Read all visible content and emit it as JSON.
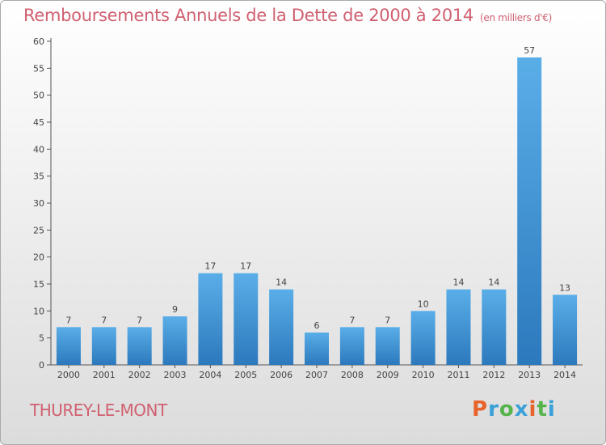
{
  "title": "Remboursements Annuels de la Dette de 2000 à 2014",
  "subtitle": "(en milliers d'€)",
  "commune": "THUREY-LE-MONT",
  "logo": {
    "text": "Proxiti",
    "colors": [
      "#e8632b",
      "#3aa0d8",
      "#55b44a",
      "#3aa0d8",
      "#e8632b",
      "#55b44a",
      "#3aa0d8"
    ]
  },
  "colors": {
    "bar_light": "#5aaee8",
    "bar_dark": "#2c79bd",
    "title": "#d06070"
  },
  "chart_data": {
    "type": "bar",
    "categories": [
      "2000",
      "2001",
      "2002",
      "2003",
      "2004",
      "2005",
      "2006",
      "2007",
      "2008",
      "2009",
      "2010",
      "2011",
      "2012",
      "2013",
      "2014"
    ],
    "values": [
      7,
      7,
      7,
      9,
      17,
      17,
      14,
      6,
      7,
      7,
      10,
      14,
      14,
      57,
      13
    ],
    "y_ticks": [
      0,
      5,
      10,
      15,
      20,
      25,
      30,
      35,
      40,
      45,
      50,
      55,
      60
    ],
    "ylim": [
      0,
      60
    ],
    "grid": false
  }
}
